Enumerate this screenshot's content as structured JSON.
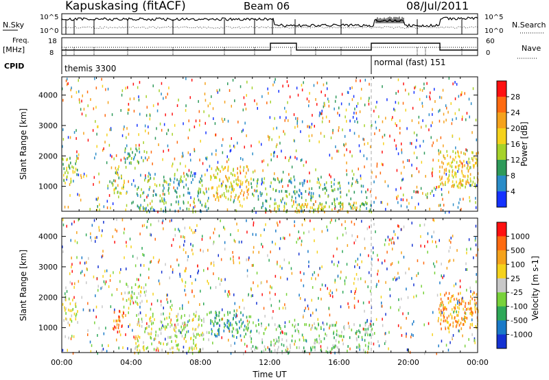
{
  "header": {
    "station": "Kapuskasing (fitACF)",
    "beam": "Beam 06",
    "date": "08/Jul/2011"
  },
  "noise_panel": {
    "left_label": "N.Sky",
    "right_label": "N.Search",
    "left_ticks": [
      "10^5",
      "10^0"
    ],
    "right_ticks": [
      "10^5",
      "10^0"
    ]
  },
  "freq_panel": {
    "left_label_1": "Freq.",
    "left_label_2": "[MHz]",
    "left_ticks": [
      "18",
      "8"
    ],
    "right_label": "Nave",
    "right_ticks": [
      "60",
      "0"
    ]
  },
  "cpid": {
    "label": "CPID",
    "modes": [
      {
        "name": "themis 3300",
        "start_h": 0.0
      },
      {
        "name": "normal (fast) 151",
        "start_h": 18.0
      }
    ]
  },
  "chart_data": [
    {
      "type": "heatmap",
      "title": "Power",
      "ylabel": "Slant Range [km]",
      "xlabel": "",
      "xlim_hours": [
        0,
        24
      ],
      "ylim": [
        180,
        4600
      ],
      "y_ticks": [
        "1000",
        "2000",
        "3000",
        "4000"
      ],
      "colorbar": {
        "label": "Power [dB]",
        "ticks": [
          "4",
          "8",
          "12",
          "16",
          "20",
          "24",
          "28"
        ],
        "colors": [
          "#1432ff",
          "#2a8cc8",
          "#2e9a5a",
          "#a6d22a",
          "#f5d21c",
          "#f5a21c",
          "#ff6a10",
          "#ff1010"
        ]
      },
      "regions": [
        {
          "t0": 0.0,
          "t1": 0.9,
          "r0": 1200,
          "r1": 2000,
          "density": 0.55,
          "level": 3
        },
        {
          "t0": 2.9,
          "t1": 3.7,
          "r0": 800,
          "r1": 1700,
          "density": 0.5,
          "level": 3
        },
        {
          "t0": 3.6,
          "t1": 4.9,
          "r0": 1800,
          "r1": 2300,
          "density": 0.6,
          "level": 2
        },
        {
          "t0": 4.2,
          "t1": 8.5,
          "r0": 200,
          "r1": 1500,
          "density": 0.35,
          "level": 2
        },
        {
          "t0": 8.5,
          "t1": 10.9,
          "r0": 600,
          "r1": 1700,
          "density": 0.55,
          "level": 4
        },
        {
          "t0": 10.9,
          "t1": 18.0,
          "r0": 200,
          "r1": 1300,
          "density": 0.3,
          "level": 2
        },
        {
          "t0": 12.0,
          "t1": 17.0,
          "r0": 200,
          "r1": 500,
          "density": 0.5,
          "level": 4
        },
        {
          "t0": 21.7,
          "t1": 24.0,
          "r0": 1000,
          "r1": 2200,
          "density": 0.65,
          "level": 4
        }
      ]
    },
    {
      "type": "heatmap",
      "title": "Velocity",
      "ylabel": "Slant Range [km]",
      "xlabel": "Time UT",
      "xlim_hours": [
        0,
        24
      ],
      "ylim": [
        180,
        4600
      ],
      "y_ticks": [
        "1000",
        "2000",
        "3000",
        "4000"
      ],
      "x_ticks": [
        "00:00",
        "04:00",
        "08:00",
        "12:00",
        "16:00",
        "20:00",
        "00:00"
      ],
      "colorbar": {
        "label": "Velocity [m s-1]",
        "ticks": [
          "1000",
          "500",
          "100",
          "25",
          "-25",
          "-100",
          "-500",
          "-1000"
        ],
        "colors": [
          "#1432d2",
          "#1a7ac8",
          "#2ea858",
          "#78d23a",
          "#c8c8c8",
          "#f5d21c",
          "#f5a21c",
          "#ff6a10",
          "#ff1010"
        ]
      },
      "regions": [
        {
          "t0": 0.0,
          "t1": 0.9,
          "r0": 1200,
          "r1": 2000,
          "density": 0.55,
          "level": 4
        },
        {
          "t0": 2.9,
          "t1": 3.6,
          "r0": 900,
          "r1": 1600,
          "density": 0.6,
          "level": 7
        },
        {
          "t0": 3.6,
          "t1": 4.9,
          "r0": 1800,
          "r1": 2500,
          "density": 0.5,
          "level": 4
        },
        {
          "t0": 4.2,
          "t1": 8.5,
          "r0": 200,
          "r1": 1500,
          "density": 0.4,
          "level": 4
        },
        {
          "t0": 8.5,
          "t1": 10.9,
          "r0": 700,
          "r1": 1600,
          "density": 0.55,
          "level": 2
        },
        {
          "t0": 10.9,
          "t1": 18.0,
          "r0": 200,
          "r1": 1200,
          "density": 0.35,
          "level": 3
        },
        {
          "t0": 21.7,
          "t1": 24.0,
          "r0": 1000,
          "r1": 2200,
          "density": 0.65,
          "level": 6
        }
      ]
    }
  ]
}
